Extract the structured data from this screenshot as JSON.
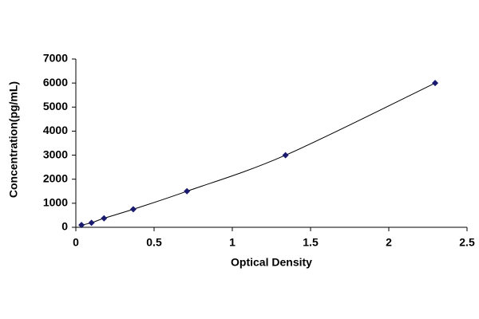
{
  "chart_data": {
    "type": "scatter",
    "x_label": "Optical Density",
    "y_label": "Concentration(pg/mL)",
    "series": [
      {
        "color": "#1a1a6e",
        "x": [
          0.036,
          0.1,
          0.18,
          0.367,
          0.71,
          1.34,
          2.296
        ],
        "values": [
          94,
          188,
          375,
          750,
          1500,
          3000,
          6000
        ]
      }
    ],
    "xlim": [
      0,
      2.5
    ],
    "xticks": [
      0,
      0.5,
      1,
      1.5,
      2,
      2.5
    ],
    "ylim": [
      0,
      7000
    ],
    "yticks": [
      0,
      1000,
      2000,
      3000,
      4000,
      5000,
      6000,
      7000
    ],
    "grid": false
  }
}
